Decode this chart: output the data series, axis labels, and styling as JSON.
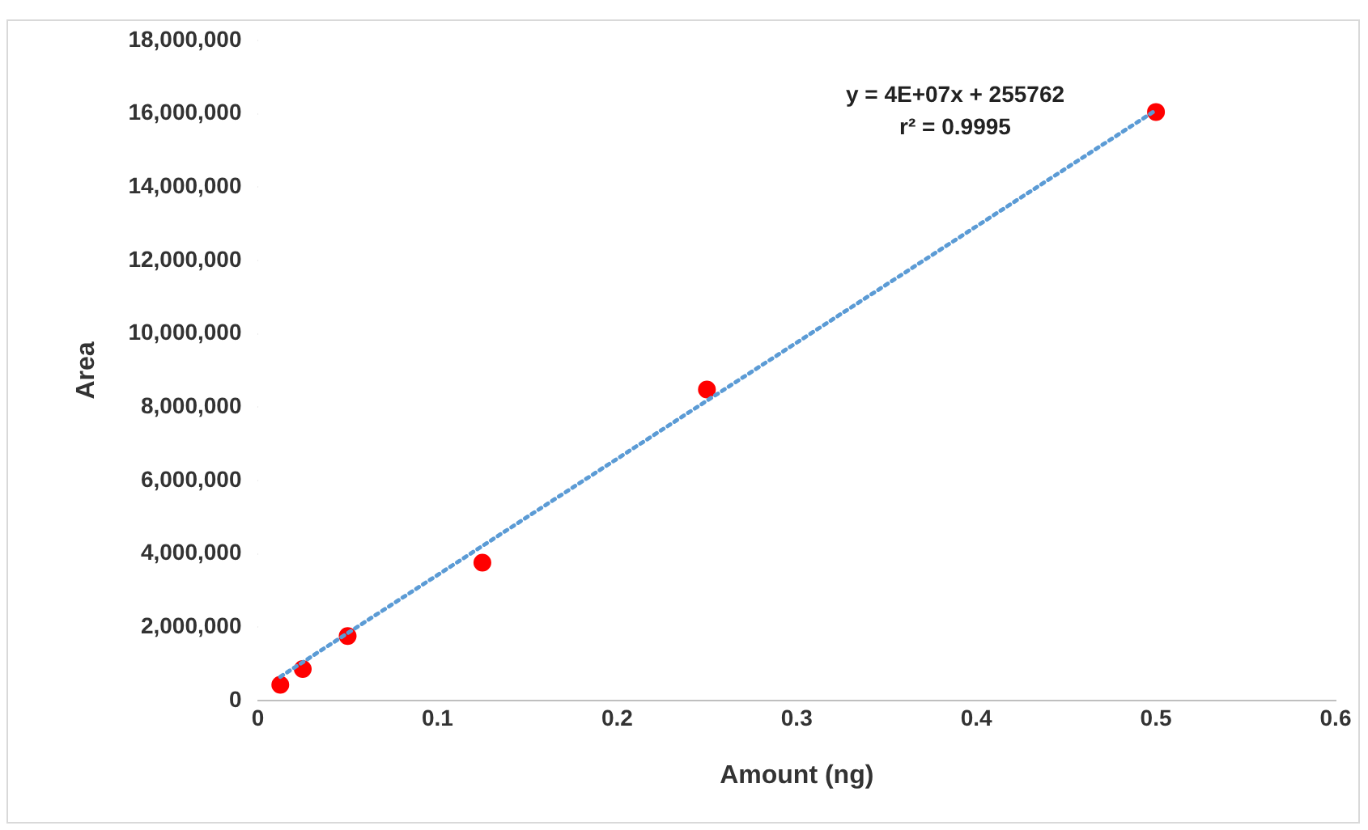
{
  "chart_data": {
    "type": "scatter",
    "xlabel": "Amount (ng)",
    "ylabel": "Area",
    "xlim": [
      0,
      0.6
    ],
    "xticks": [
      0,
      0.1,
      0.2,
      0.3,
      0.4,
      0.5,
      0.6
    ],
    "ylim": [
      0,
      18000000
    ],
    "yticks": [
      {
        "value": 0,
        "label": "0"
      },
      {
        "value": 2000000,
        "label": "2,000,000"
      },
      {
        "value": 4000000,
        "label": "4,000,000"
      },
      {
        "value": 6000000,
        "label": "6,000,000"
      },
      {
        "value": 8000000,
        "label": "8,000,000"
      },
      {
        "value": 10000000,
        "label": "10,000,000"
      },
      {
        "value": 12000000,
        "label": "12,000,000"
      },
      {
        "value": 14000000,
        "label": "14,000,000"
      },
      {
        "value": 16000000,
        "label": "16,000,000"
      },
      {
        "value": 18000000,
        "label": "18,000,000"
      }
    ],
    "grid": false,
    "legend": false,
    "marker": "circle",
    "series": [
      {
        "color": "#ff0000",
        "x": [
          0.0125,
          0.025,
          0.05,
          0.125,
          0.25,
          0.5
        ],
        "values": [
          430000,
          860000,
          1760000,
          3760000,
          8480000,
          16050000
        ]
      },
      {
        "type": "line",
        "line_style": "dotted",
        "marker": "none",
        "color": "#5b9bd5",
        "x": [
          0.0125,
          0.5
        ],
        "values": [
          650000,
          16100000
        ]
      }
    ],
    "annotations": [
      "y = 4E+07x + 255762",
      "r² = 0.9995"
    ]
  }
}
